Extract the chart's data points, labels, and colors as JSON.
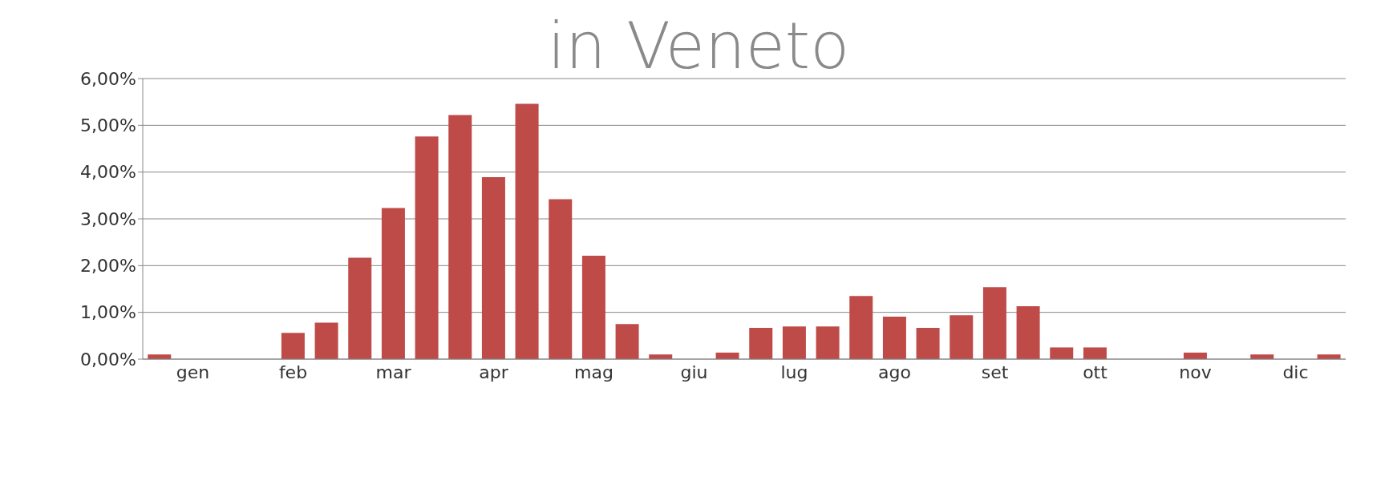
{
  "chart_data": {
    "type": "bar",
    "title": "in Veneto",
    "categories": [
      null,
      "gen",
      null,
      null,
      "feb",
      null,
      null,
      "mar",
      null,
      null,
      "apr",
      null,
      null,
      "mag",
      null,
      null,
      "giu",
      null,
      null,
      "lug",
      null,
      null,
      "ago",
      null,
      null,
      "set",
      null,
      null,
      "ott",
      null,
      null,
      "nov",
      null,
      null,
      "dic",
      null
    ],
    "values": [
      0.1,
      0,
      0,
      0,
      0.56,
      0.78,
      2.17,
      3.23,
      4.76,
      5.22,
      3.89,
      5.46,
      3.42,
      2.21,
      0.75,
      0.1,
      0,
      0.14,
      0.67,
      0.7,
      0.7,
      1.35,
      0.91,
      0.67,
      0.94,
      1.54,
      1.13,
      0.25,
      0.25,
      0,
      0,
      0.14,
      0,
      0.1,
      0,
      0.1
    ],
    "color": "#be4b48",
    "ylim": [
      0,
      6
    ],
    "yticks": [
      {
        "value": 0,
        "label": "0,00%"
      },
      {
        "value": 1,
        "label": "1,00%"
      },
      {
        "value": 2,
        "label": "2,00%"
      },
      {
        "value": 3,
        "label": "3,00%"
      },
      {
        "value": 4,
        "label": "4,00%"
      },
      {
        "value": 5,
        "label": "5,00%"
      },
      {
        "value": 6,
        "label": "6,00%"
      }
    ],
    "grid": "y"
  }
}
